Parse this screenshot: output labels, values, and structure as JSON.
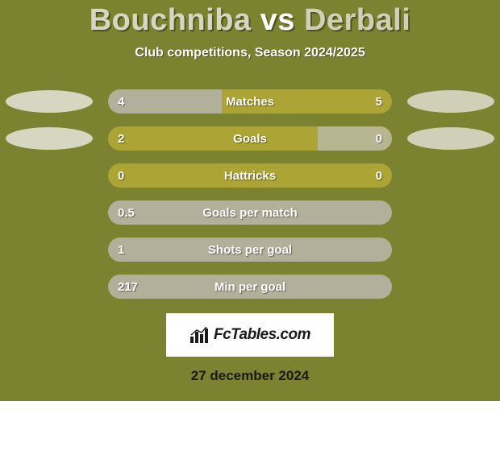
{
  "background_color": "#7b8331",
  "title": {
    "player1": "Bouchniba",
    "vs": "vs",
    "player2": "Derbali",
    "color_p1": "#d5d7c2",
    "color_vs": "#ffffff",
    "color_p2": "#cfd0b7"
  },
  "subtitle": "Club competitions, Season 2024/2025",
  "bar_track_color": "#aca434",
  "fill_left_color": "#b2af9b",
  "fill_right_color": "#b7b592",
  "ellipse_left_color": "#d5d7c1",
  "ellipse_right_color": "#cfd0b7",
  "metrics": [
    {
      "label": "Matches",
      "left_value": "4",
      "right_value": "5",
      "left_pct": 40,
      "right_pct": 0,
      "show_ellipses": true
    },
    {
      "label": "Goals",
      "left_value": "2",
      "right_value": "0",
      "left_pct": 0,
      "right_pct": 26,
      "show_ellipses": true
    },
    {
      "label": "Hattricks",
      "left_value": "0",
      "right_value": "0",
      "left_pct": 0,
      "right_pct": 0,
      "show_ellipses": false
    },
    {
      "label": "Goals per match",
      "left_value": "0.5",
      "right_value": "",
      "left_pct": 100,
      "right_pct": 0,
      "show_ellipses": false
    },
    {
      "label": "Shots per goal",
      "left_value": "1",
      "right_value": "",
      "left_pct": 100,
      "right_pct": 0,
      "show_ellipses": false
    },
    {
      "label": "Min per goal",
      "left_value": "217",
      "right_value": "",
      "left_pct": 100,
      "right_pct": 0,
      "show_ellipses": false
    }
  ],
  "logo_text": "FcTables.com",
  "date": "27 december 2024"
}
